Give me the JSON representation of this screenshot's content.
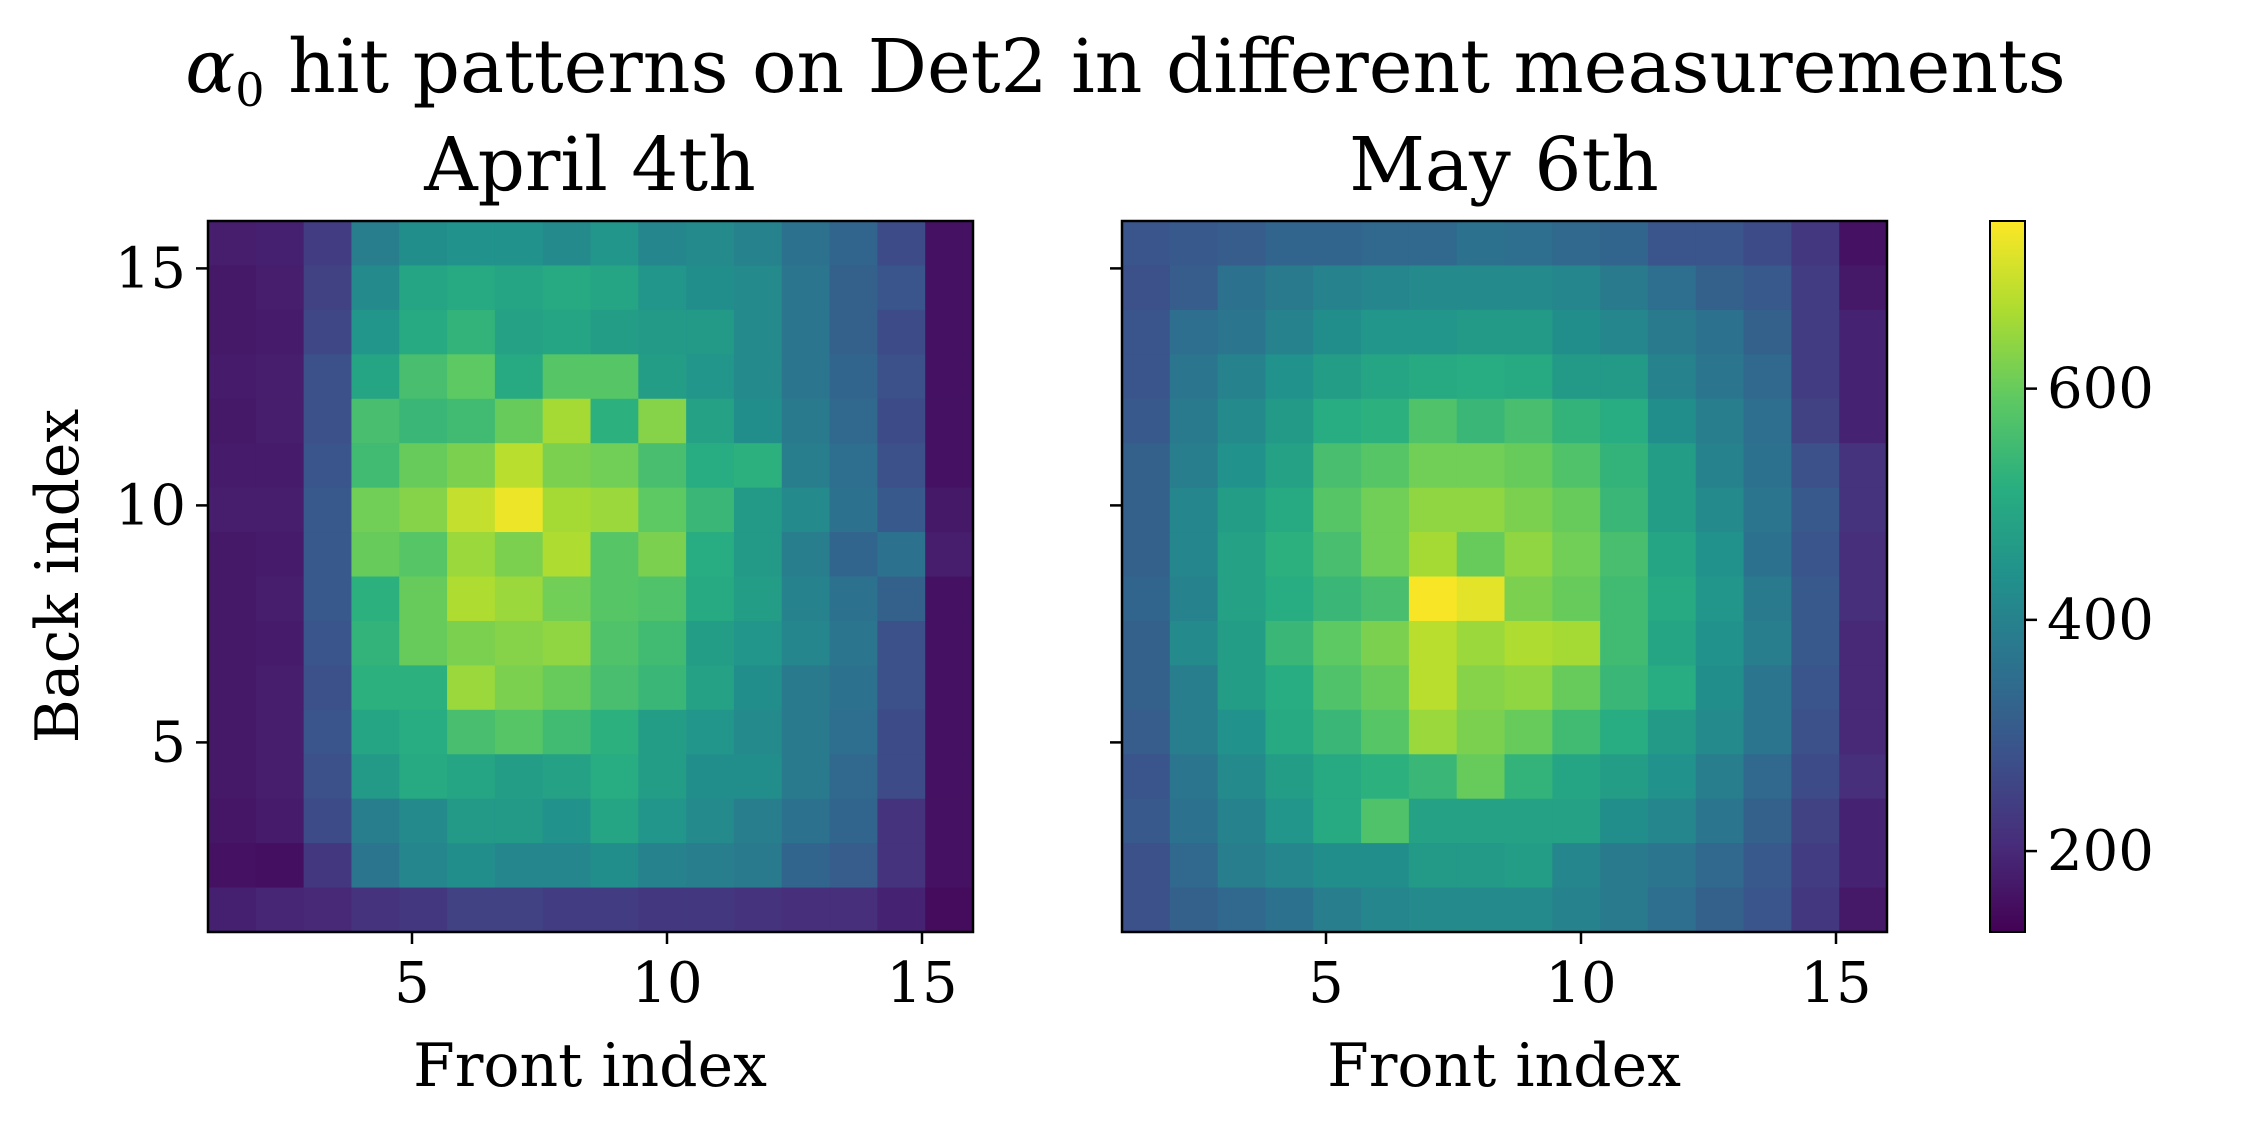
{
  "figure": {
    "title_symbol": "α",
    "title_subscript": "0",
    "title_rest": " hit patterns on Det2 in different measurements"
  },
  "chart_data": [
    {
      "type": "heatmap",
      "title": "April 4th",
      "xlabel": "Front index",
      "ylabel": "Back index",
      "x": [
        1,
        2,
        3,
        4,
        5,
        6,
        7,
        8,
        9,
        10,
        11,
        12,
        13,
        14,
        15,
        16
      ],
      "y": [
        16,
        15,
        14,
        13,
        12,
        11,
        10,
        9,
        8,
        7,
        6,
        5,
        4,
        3,
        2,
        1
      ],
      "xlim": [
        1,
        16
      ],
      "ylim": [
        1,
        16
      ],
      "xticks": [
        5,
        10,
        15
      ],
      "yticks": [
        5,
        10,
        15
      ],
      "grid": false,
      "colormap": "viridis",
      "values": [
        [
          180,
          185,
          240,
          390,
          430,
          440,
          440,
          420,
          450,
          410,
          420,
          400,
          360,
          330,
          270,
          160
        ],
        [
          170,
          180,
          250,
          420,
          490,
          500,
          490,
          500,
          490,
          450,
          430,
          420,
          370,
          320,
          290,
          160
        ],
        [
          170,
          175,
          260,
          450,
          500,
          530,
          480,
          490,
          470,
          460,
          460,
          420,
          370,
          320,
          270,
          160
        ],
        [
          175,
          180,
          280,
          490,
          560,
          590,
          500,
          580,
          580,
          470,
          450,
          420,
          370,
          330,
          280,
          160
        ],
        [
          170,
          180,
          280,
          560,
          540,
          550,
          600,
          660,
          520,
          630,
          480,
          430,
          380,
          340,
          270,
          160
        ],
        [
          175,
          175,
          290,
          550,
          600,
          620,
          680,
          620,
          610,
          560,
          510,
          520,
          390,
          350,
          280,
          160
        ],
        [
          180,
          180,
          300,
          610,
          630,
          690,
          730,
          660,
          650,
          590,
          540,
          460,
          420,
          360,
          300,
          170
        ],
        [
          170,
          175,
          300,
          600,
          580,
          650,
          620,
          670,
          580,
          620,
          510,
          460,
          390,
          330,
          360,
          180
        ],
        [
          170,
          180,
          300,
          520,
          600,
          670,
          650,
          610,
          580,
          570,
          500,
          470,
          400,
          360,
          320,
          160
        ],
        [
          170,
          175,
          290,
          530,
          600,
          620,
          630,
          640,
          570,
          550,
          470,
          450,
          410,
          370,
          280,
          160
        ],
        [
          170,
          180,
          280,
          520,
          520,
          650,
          620,
          600,
          560,
          540,
          480,
          430,
          380,
          360,
          280,
          160
        ],
        [
          170,
          180,
          290,
          490,
          510,
          560,
          580,
          550,
          520,
          470,
          450,
          420,
          380,
          350,
          270,
          160
        ],
        [
          170,
          180,
          280,
          460,
          500,
          490,
          470,
          480,
          510,
          470,
          430,
          430,
          380,
          340,
          270,
          160
        ],
        [
          165,
          175,
          270,
          390,
          420,
          460,
          460,
          440,
          490,
          450,
          420,
          390,
          360,
          330,
          220,
          160
        ],
        [
          160,
          155,
          230,
          370,
          410,
          430,
          410,
          410,
          430,
          400,
          390,
          380,
          330,
          310,
          220,
          160
        ],
        [
          185,
          195,
          200,
          220,
          230,
          250,
          250,
          240,
          240,
          230,
          230,
          220,
          210,
          210,
          190,
          150
        ]
      ]
    },
    {
      "type": "heatmap",
      "title": "May 6th",
      "xlabel": "Front index",
      "ylabel": "",
      "x": [
        1,
        2,
        3,
        4,
        5,
        6,
        7,
        8,
        9,
        10,
        11,
        12,
        13,
        14,
        15,
        16
      ],
      "y": [
        16,
        15,
        14,
        13,
        12,
        11,
        10,
        9,
        8,
        7,
        6,
        5,
        4,
        3,
        2,
        1
      ],
      "xlim": [
        1,
        16
      ],
      "ylim": [
        1,
        16
      ],
      "xticks": [
        5,
        10,
        15
      ],
      "yticks": [
        5,
        10,
        15
      ],
      "grid": false,
      "colormap": "viridis",
      "values": [
        [
          290,
          300,
          310,
          330,
          330,
          340,
          340,
          360,
          350,
          340,
          330,
          290,
          290,
          270,
          230,
          160
        ],
        [
          280,
          310,
          360,
          380,
          400,
          410,
          420,
          420,
          420,
          410,
          380,
          350,
          320,
          300,
          240,
          170
        ],
        [
          290,
          350,
          370,
          400,
          430,
          450,
          450,
          460,
          460,
          430,
          410,
          380,
          360,
          320,
          240,
          190
        ],
        [
          290,
          370,
          400,
          440,
          470,
          490,
          500,
          510,
          500,
          460,
          460,
          400,
          370,
          340,
          240,
          190
        ],
        [
          300,
          380,
          420,
          460,
          510,
          520,
          570,
          540,
          560,
          530,
          510,
          430,
          390,
          350,
          250,
          190
        ],
        [
          320,
          390,
          440,
          480,
          560,
          580,
          610,
          610,
          600,
          570,
          530,
          470,
          400,
          360,
          280,
          220
        ],
        [
          320,
          410,
          470,
          500,
          580,
          610,
          640,
          640,
          620,
          600,
          540,
          470,
          420,
          370,
          300,
          220
        ],
        [
          320,
          410,
          480,
          520,
          560,
          610,
          660,
          600,
          640,
          610,
          560,
          490,
          440,
          360,
          290,
          210
        ],
        [
          330,
          400,
          480,
          510,
          540,
          560,
          740,
          720,
          620,
          600,
          550,
          500,
          450,
          380,
          300,
          210
        ],
        [
          320,
          420,
          470,
          540,
          590,
          620,
          680,
          650,
          670,
          660,
          550,
          490,
          440,
          390,
          300,
          200
        ],
        [
          320,
          390,
          470,
          510,
          570,
          600,
          680,
          630,
          640,
          600,
          540,
          510,
          430,
          370,
          290,
          200
        ],
        [
          310,
          390,
          440,
          500,
          540,
          580,
          650,
          620,
          600,
          550,
          510,
          460,
          420,
          370,
          280,
          200
        ],
        [
          290,
          370,
          420,
          470,
          500,
          520,
          540,
          600,
          530,
          490,
          470,
          440,
          390,
          340,
          270,
          210
        ],
        [
          300,
          360,
          400,
          450,
          500,
          570,
          480,
          480,
          480,
          480,
          430,
          410,
          370,
          320,
          250,
          190
        ],
        [
          280,
          340,
          390,
          410,
          430,
          430,
          460,
          460,
          470,
          410,
          380,
          370,
          340,
          300,
          240,
          190
        ],
        [
          280,
          320,
          340,
          360,
          390,
          410,
          420,
          420,
          420,
          400,
          380,
          350,
          320,
          290,
          230,
          170
        ]
      ]
    }
  ],
  "colorbar": {
    "min": 130,
    "max": 745,
    "ticks": [
      200,
      400,
      600
    ],
    "tick_labels": [
      "200",
      "400",
      "600"
    ]
  }
}
